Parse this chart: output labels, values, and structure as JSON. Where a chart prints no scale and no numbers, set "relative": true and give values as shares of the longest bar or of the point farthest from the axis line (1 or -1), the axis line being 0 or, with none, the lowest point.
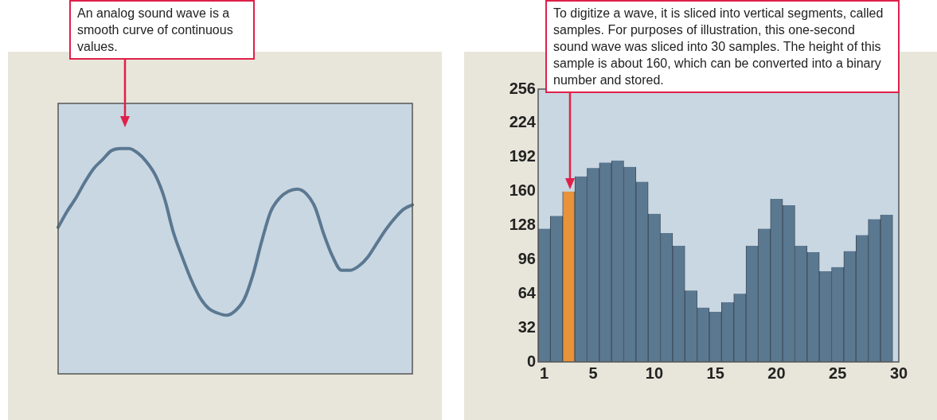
{
  "chart_data": [
    {
      "type": "line",
      "relative": true,
      "categories": [
        null,
        null,
        null,
        null,
        null,
        null,
        null,
        null,
        null,
        null,
        null,
        null,
        null,
        null,
        null,
        null,
        null,
        null,
        null,
        null,
        null,
        null,
        null,
        null,
        null,
        null,
        null,
        null,
        null,
        null,
        null,
        null,
        null,
        null,
        null,
        null,
        null,
        null,
        null,
        null,
        null
      ],
      "values": [
        0.65,
        0.72,
        0.78,
        0.85,
        0.91,
        0.95,
        0.99,
        1.0,
        1.0,
        0.98,
        0.94,
        0.88,
        0.78,
        0.63,
        0.52,
        0.42,
        0.34,
        0.29,
        0.27,
        0.26,
        0.28,
        0.33,
        0.44,
        0.59,
        0.72,
        0.78,
        0.81,
        0.82,
        0.8,
        0.74,
        0.62,
        0.52,
        0.46,
        0.46,
        0.48,
        0.52,
        0.58,
        0.64,
        0.69,
        0.73,
        0.75
      ],
      "color": "#5b7891",
      "grid": false,
      "legend": false,
      "annotations": [
        "An analog sound wave is a smooth curve of continuous values."
      ]
    },
    {
      "type": "bar",
      "x": [
        1,
        2,
        3,
        4,
        5,
        6,
        7,
        8,
        9,
        10,
        11,
        12,
        13,
        14,
        15,
        16,
        17,
        18,
        19,
        20,
        21,
        22,
        23,
        24,
        25,
        26,
        27,
        28,
        29
      ],
      "values": [
        125,
        137,
        160,
        174,
        182,
        187,
        189,
        183,
        169,
        139,
        121,
        109,
        67,
        51,
        47,
        56,
        64,
        109,
        125,
        153,
        147,
        109,
        103,
        85,
        89,
        104,
        119,
        134,
        138
      ],
      "colors": [
        "#5b7891",
        "#5b7891",
        "#e8923a",
        "#5b7891",
        "#5b7891",
        "#5b7891",
        "#5b7891",
        "#5b7891",
        "#5b7891",
        "#5b7891",
        "#5b7891",
        "#5b7891",
        "#5b7891",
        "#5b7891",
        "#5b7891",
        "#5b7891",
        "#5b7891",
        "#5b7891",
        "#5b7891",
        "#5b7891",
        "#5b7891",
        "#5b7891",
        "#5b7891",
        "#5b7891",
        "#5b7891",
        "#5b7891",
        "#5b7891",
        "#5b7891",
        "#5b7891"
      ],
      "xlim": [
        0.5,
        30
      ],
      "xticks": [
        1,
        5,
        10,
        15,
        20,
        25,
        30
      ],
      "ylim": [
        0,
        256
      ],
      "yticks": [
        0,
        32,
        64,
        96,
        128,
        160,
        192,
        224,
        256
      ],
      "grid": false,
      "legend": false,
      "annotations": [
        "To digitize a wave, it is sliced into vertical segments, called samples. For purposes of illustration, this one-second sound wave was sliced into 30 samples. The height of this sample is about 160, which can be converted into a binary number and stored."
      ]
    }
  ]
}
